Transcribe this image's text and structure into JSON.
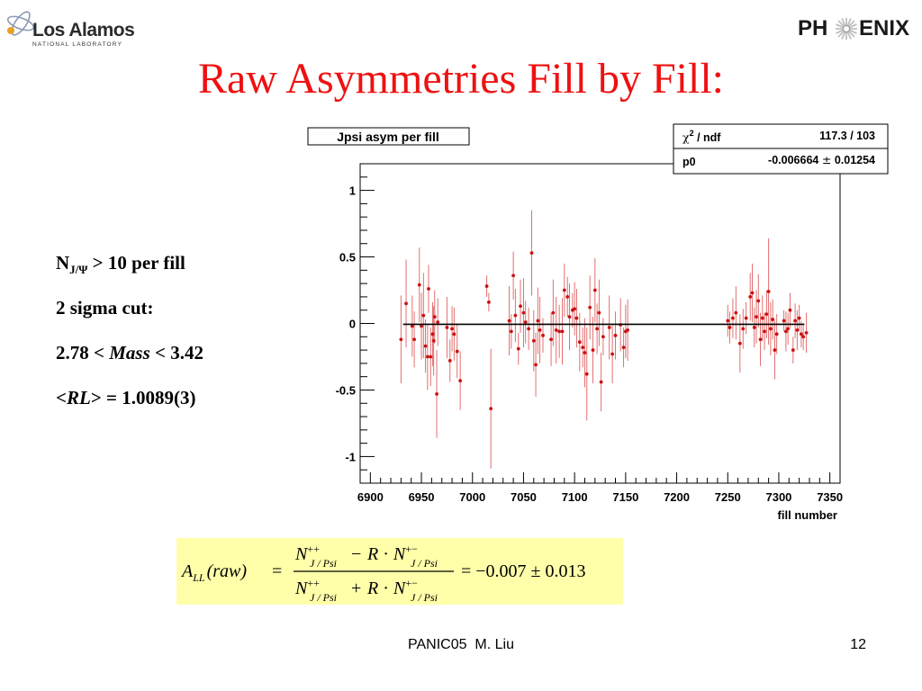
{
  "logos": {
    "lanl_name": "Los Alamos",
    "lanl_sub": "NATIONAL LABORATORY",
    "phenix_left": "PH",
    "phenix_right": "ENIX"
  },
  "slide": {
    "title": "Raw Asymmetries Fill by Fill:",
    "footer": "PANIC05  M. Liu",
    "page": "12"
  },
  "notes": {
    "line1_main": "N",
    "line1_sub": "J/Ψ",
    "line1_rest": " > 10 per fill",
    "line2": "2 sigma cut:",
    "line3_pre": "2.78 < ",
    "line3_italic": "Mass",
    "line3_post": " < 3.42",
    "line4_pre": "<",
    "line4_italic": "RL",
    "line4_post": "> = 1.0089(3)"
  },
  "formula": {
    "lhs_A": "A",
    "lhs_sub": "LL",
    "lhs_arg": "(raw)",
    "N": "N",
    "R": "R",
    "pp": "++",
    "pm": "+−",
    "jpsi": "J / Psi",
    "result": "= −0.007 ± 0.013"
  },
  "chart_data": {
    "type": "scatter",
    "title": "Jpsi asym per fill",
    "xlabel": "fill number",
    "ylabel": "",
    "xlim": [
      6890,
      7360
    ],
    "ylim": [
      -1.2,
      1.2
    ],
    "xticks": [
      6900,
      6950,
      7000,
      7050,
      7100,
      7150,
      7200,
      7250,
      7300,
      7350
    ],
    "yticks": [
      -1,
      -0.5,
      0,
      0.5,
      1
    ],
    "ytick_labels": [
      "-1",
      "-0.5",
      "0",
      "0.5",
      "1"
    ],
    "fit": {
      "p0": -0.006664,
      "x_range": [
        6932,
        7325
      ]
    },
    "stats": {
      "chi2_label": "χ",
      "chi2_sup": "2",
      "ndf_label": " / ndf",
      "chi2_value": "117.3 / 103",
      "p0_label": "p0",
      "p0_value": "-0.006664",
      "p0_pm": "±",
      "p0_error": "0.01254"
    },
    "colors": {
      "points": "#cc1111",
      "errors": "#e06060",
      "fit": "#000000",
      "title": "#ee1111"
    },
    "points": [
      {
        "x": 6930,
        "y": -0.12,
        "e": 0.33
      },
      {
        "x": 6935,
        "y": 0.15,
        "e": 0.33
      },
      {
        "x": 6941,
        "y": -0.02,
        "e": 0.23
      },
      {
        "x": 6943,
        "y": -0.12,
        "e": 0.21
      },
      {
        "x": 6948,
        "y": 0.29,
        "e": 0.28
      },
      {
        "x": 6950,
        "y": -0.02,
        "e": 0.25
      },
      {
        "x": 6952,
        "y": 0.06,
        "e": 0.32
      },
      {
        "x": 6954,
        "y": -0.17,
        "e": 0.2
      },
      {
        "x": 6956,
        "y": -0.25,
        "e": 0.25
      },
      {
        "x": 6957,
        "y": 0.26,
        "e": 0.18
      },
      {
        "x": 6959,
        "y": -0.25,
        "e": 0.22
      },
      {
        "x": 6961,
        "y": -0.08,
        "e": 0.24
      },
      {
        "x": 6962,
        "y": -0.13,
        "e": 0.26
      },
      {
        "x": 6963,
        "y": 0.05,
        "e": 0.2
      },
      {
        "x": 6965,
        "y": -0.53,
        "e": 0.33
      },
      {
        "x": 6966,
        "y": 0.01,
        "e": 0.18
      },
      {
        "x": 6975,
        "y": -0.03,
        "e": 0.23
      },
      {
        "x": 6978,
        "y": -0.28,
        "e": 0.16
      },
      {
        "x": 6980,
        "y": -0.04,
        "e": 0.17
      },
      {
        "x": 6982,
        "y": -0.08,
        "e": 0.2
      },
      {
        "x": 6985,
        "y": -0.21,
        "e": 0.2
      },
      {
        "x": 6988,
        "y": -0.43,
        "e": 0.22
      },
      {
        "x": 7014,
        "y": 0.28,
        "e": 0.08
      },
      {
        "x": 7016,
        "y": 0.16,
        "e": 0.07
      },
      {
        "x": 7018,
        "y": -0.64,
        "e": 0.45
      },
      {
        "x": 7036,
        "y": 0.02,
        "e": 0.26
      },
      {
        "x": 7038,
        "y": -0.06,
        "e": 0.13
      },
      {
        "x": 7040,
        "y": 0.36,
        "e": 0.18
      },
      {
        "x": 7042,
        "y": 0.06,
        "e": 0.2
      },
      {
        "x": 7045,
        "y": -0.19,
        "e": 0.12
      },
      {
        "x": 7047,
        "y": 0.13,
        "e": 0.2
      },
      {
        "x": 7050,
        "y": 0.08,
        "e": 0.26
      },
      {
        "x": 7052,
        "y": 0.01,
        "e": 0.16
      },
      {
        "x": 7055,
        "y": -0.04,
        "e": 0.16
      },
      {
        "x": 7058,
        "y": 0.53,
        "e": 0.32
      },
      {
        "x": 7060,
        "y": -0.13,
        "e": 0.23
      },
      {
        "x": 7062,
        "y": -0.31,
        "e": 0.24
      },
      {
        "x": 7064,
        "y": 0.02,
        "e": 0.25
      },
      {
        "x": 7066,
        "y": -0.05,
        "e": 0.25
      },
      {
        "x": 7069,
        "y": -0.09,
        "e": 0.13
      },
      {
        "x": 7077,
        "y": -0.12,
        "e": 0.2
      },
      {
        "x": 7079,
        "y": 0.08,
        "e": 0.25
      },
      {
        "x": 7082,
        "y": -0.05,
        "e": 0.25
      },
      {
        "x": 7085,
        "y": -0.06,
        "e": 0.2
      },
      {
        "x": 7088,
        "y": -0.06,
        "e": 0.25
      },
      {
        "x": 7090,
        "y": 0.25,
        "e": 0.2
      },
      {
        "x": 7093,
        "y": 0.2,
        "e": 0.15
      },
      {
        "x": 7095,
        "y": 0.05,
        "e": 0.25
      },
      {
        "x": 7098,
        "y": 0.1,
        "e": 0.13
      },
      {
        "x": 7100,
        "y": 0.11,
        "e": 0.2
      },
      {
        "x": 7102,
        "y": 0.04,
        "e": 0.22
      },
      {
        "x": 7105,
        "y": -0.14,
        "e": 0.22
      },
      {
        "x": 7108,
        "y": -0.18,
        "e": 0.15
      },
      {
        "x": 7110,
        "y": -0.22,
        "e": 0.26
      },
      {
        "x": 7112,
        "y": -0.38,
        "e": 0.35
      },
      {
        "x": 7115,
        "y": 0.12,
        "e": 0.24
      },
      {
        "x": 7118,
        "y": -0.2,
        "e": 0.25
      },
      {
        "x": 7120,
        "y": 0.25,
        "e": 0.24
      },
      {
        "x": 7122,
        "y": -0.04,
        "e": 0.19
      },
      {
        "x": 7124,
        "y": 0.08,
        "e": 0.25
      },
      {
        "x": 7126,
        "y": -0.44,
        "e": 0.22
      },
      {
        "x": 7128,
        "y": -0.1,
        "e": 0.14
      },
      {
        "x": 7134,
        "y": -0.03,
        "e": 0.24
      },
      {
        "x": 7137,
        "y": -0.23,
        "e": 0.22
      },
      {
        "x": 7140,
        "y": -0.09,
        "e": 0.18
      },
      {
        "x": 7145,
        "y": -0.01,
        "e": 0.2
      },
      {
        "x": 7148,
        "y": -0.18,
        "e": 0.15
      },
      {
        "x": 7150,
        "y": -0.06,
        "e": 0.2
      },
      {
        "x": 7152,
        "y": -0.05,
        "e": 0.23
      },
      {
        "x": 7250,
        "y": 0.02,
        "e": 0.12
      },
      {
        "x": 7252,
        "y": -0.03,
        "e": 0.12
      },
      {
        "x": 7255,
        "y": 0.04,
        "e": 0.15
      },
      {
        "x": 7258,
        "y": 0.08,
        "e": 0.2
      },
      {
        "x": 7262,
        "y": -0.15,
        "e": 0.22
      },
      {
        "x": 7265,
        "y": -0.04,
        "e": 0.15
      },
      {
        "x": 7268,
        "y": 0.04,
        "e": 0.12
      },
      {
        "x": 7272,
        "y": 0.2,
        "e": 0.18
      },
      {
        "x": 7274,
        "y": 0.23,
        "e": 0.22
      },
      {
        "x": 7276,
        "y": -0.03,
        "e": 0.15
      },
      {
        "x": 7278,
        "y": 0.05,
        "e": 0.2
      },
      {
        "x": 7280,
        "y": 0.17,
        "e": 0.2
      },
      {
        "x": 7282,
        "y": -0.12,
        "e": 0.2
      },
      {
        "x": 7284,
        "y": 0.04,
        "e": 0.17
      },
      {
        "x": 7286,
        "y": -0.06,
        "e": 0.14
      },
      {
        "x": 7288,
        "y": 0.07,
        "e": 0.18
      },
      {
        "x": 7290,
        "y": 0.24,
        "e": 0.4
      },
      {
        "x": 7292,
        "y": -0.04,
        "e": 0.2
      },
      {
        "x": 7294,
        "y": 0.03,
        "e": 0.15
      },
      {
        "x": 7296,
        "y": -0.2,
        "e": 0.22
      },
      {
        "x": 7298,
        "y": -0.08,
        "e": 0.15
      },
      {
        "x": 7305,
        "y": 0.02,
        "e": 0.08
      },
      {
        "x": 7307,
        "y": -0.06,
        "e": 0.15
      },
      {
        "x": 7309,
        "y": -0.04,
        "e": 0.12
      },
      {
        "x": 7311,
        "y": 0.1,
        "e": 0.13
      },
      {
        "x": 7314,
        "y": -0.2,
        "e": 0.1
      },
      {
        "x": 7316,
        "y": 0.02,
        "e": 0.13
      },
      {
        "x": 7318,
        "y": -0.05,
        "e": 0.15
      },
      {
        "x": 7320,
        "y": 0.04,
        "e": 0.1
      },
      {
        "x": 7322,
        "y": -0.08,
        "e": 0.1
      },
      {
        "x": 7324,
        "y": -0.1,
        "e": 0.1
      },
      {
        "x": 7327,
        "y": -0.07,
        "e": 0.15
      }
    ]
  }
}
